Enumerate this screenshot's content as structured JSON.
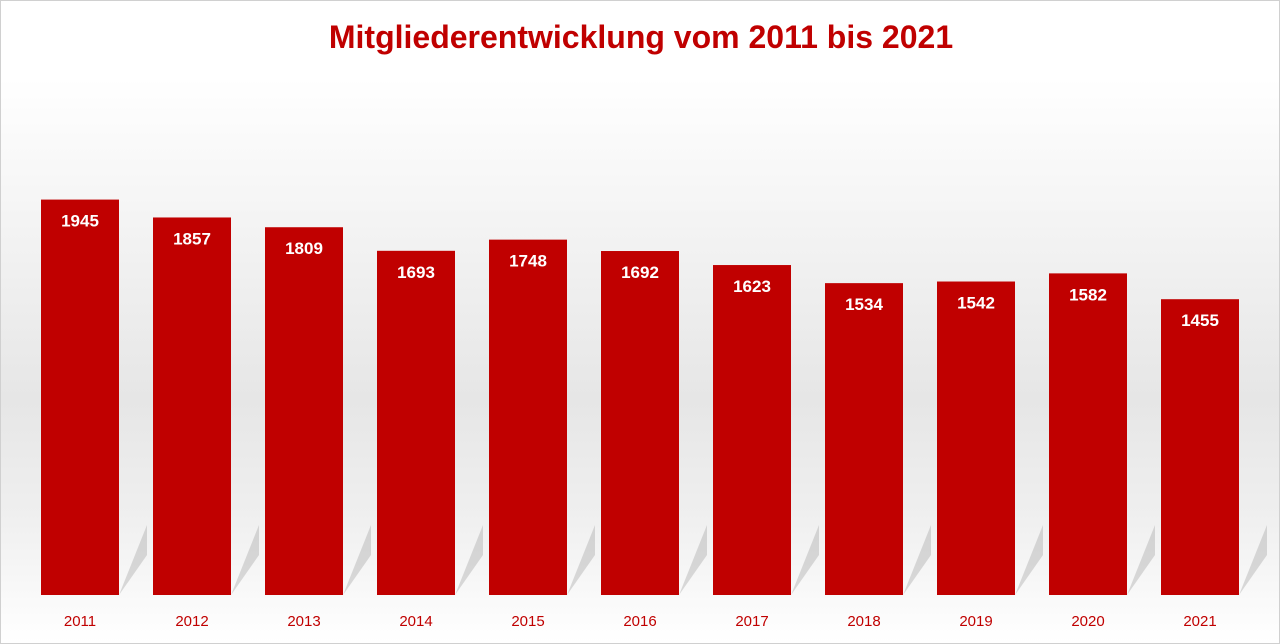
{
  "chart_data": {
    "type": "bar",
    "title": "Mitgliederentwicklung vom 2011 bis 2021",
    "categories": [
      "2011",
      "2012",
      "2013",
      "2014",
      "2015",
      "2016",
      "2017",
      "2018",
      "2019",
      "2020",
      "2021"
    ],
    "values": [
      1945,
      1857,
      1809,
      1693,
      1748,
      1692,
      1623,
      1534,
      1542,
      1582,
      1455
    ],
    "xlabel": "",
    "ylabel": "",
    "ylim": [
      0,
      2000
    ],
    "grid": false,
    "legend": "none",
    "colors": {
      "bar": "#c00000",
      "title": "#c00000",
      "value_label": "#ffffff",
      "tick_label": "#c00000"
    }
  }
}
